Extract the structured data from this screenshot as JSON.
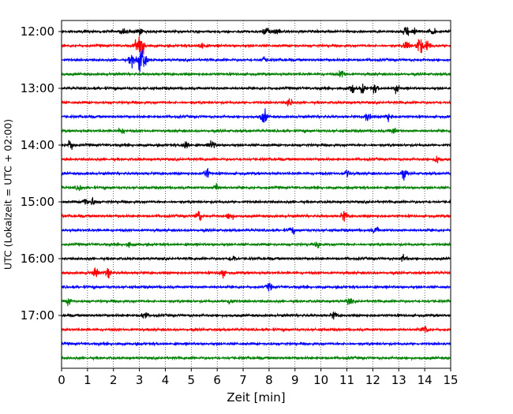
{
  "chart_data": {
    "type": "line",
    "title": "",
    "xlabel": "Zeit  [min]",
    "ylabel": "UTC (Lokalzeit = UTC + 02:00)",
    "xlim": [
      0,
      15
    ],
    "x_ticks": [
      0,
      1,
      2,
      3,
      4,
      5,
      6,
      7,
      8,
      9,
      10,
      11,
      12,
      13,
      14,
      15
    ],
    "x_tick_labels": [
      "0",
      "1",
      "2",
      "3",
      "4",
      "5",
      "6",
      "7",
      "8",
      "9",
      "10",
      "11",
      "12",
      "13",
      "14",
      "15"
    ],
    "y_tick_labels": [
      "12:00",
      "13:00",
      "14:00",
      "15:00",
      "16:00",
      "17:00"
    ],
    "grid": "vertical dotted lines at each minute",
    "color_cycle": [
      "#000000",
      "#ff0000",
      "#0000ff",
      "#008000"
    ],
    "series": [
      {
        "start": "12:00",
        "color": "#000000",
        "events": [
          [
            2.4,
            1.6
          ],
          [
            3.0,
            1.3
          ],
          [
            7.9,
            1.8
          ],
          [
            8.3,
            1.5
          ],
          [
            13.3,
            1.8
          ],
          [
            13.6,
            1.4
          ],
          [
            14.3,
            1.2
          ]
        ]
      },
      {
        "start": "12:15",
        "color": "#ff0000",
        "events": [
          [
            3.1,
            4.0
          ],
          [
            2.9,
            2.0
          ],
          [
            5.4,
            1.2
          ],
          [
            13.8,
            3.5
          ],
          [
            14.1,
            2.2
          ],
          [
            13.3,
            1.6
          ]
        ]
      },
      {
        "start": "12:30",
        "color": "#0000ff",
        "events": [
          [
            3.0,
            4.5
          ],
          [
            3.2,
            3.0
          ],
          [
            2.7,
            1.8
          ],
          [
            7.8,
            1.2
          ]
        ]
      },
      {
        "start": "12:45",
        "color": "#008000",
        "events": [
          [
            10.8,
            1.5
          ]
        ]
      },
      {
        "start": "13:00",
        "color": "#000000",
        "events": [
          [
            11.2,
            1.8
          ],
          [
            11.6,
            1.6
          ],
          [
            12.1,
            1.5
          ],
          [
            12.9,
            1.2
          ]
        ]
      },
      {
        "start": "13:15",
        "color": "#ff0000",
        "events": [
          [
            8.8,
            1.3
          ]
        ]
      },
      {
        "start": "13:30",
        "color": "#0000ff",
        "events": [
          [
            7.8,
            2.5
          ],
          [
            11.8,
            1.5
          ],
          [
            12.6,
            1.6
          ]
        ]
      },
      {
        "start": "13:45",
        "color": "#008000",
        "events": [
          [
            2.3,
            1.2
          ],
          [
            12.8,
            1.2
          ]
        ]
      },
      {
        "start": "14:00",
        "color": "#000000",
        "events": [
          [
            0.35,
            2.0
          ],
          [
            4.8,
            1.8
          ],
          [
            5.8,
            1.8
          ]
        ]
      },
      {
        "start": "14:15",
        "color": "#ff0000",
        "events": [
          [
            14.5,
            1.3
          ]
        ]
      },
      {
        "start": "14:30",
        "color": "#0000ff",
        "events": [
          [
            5.6,
            1.9
          ],
          [
            13.2,
            1.6
          ],
          [
            11.0,
            1.2
          ]
        ]
      },
      {
        "start": "14:45",
        "color": "#008000",
        "events": [
          [
            6.0,
            1.3
          ],
          [
            0.7,
            1.2
          ]
        ]
      },
      {
        "start": "15:00",
        "color": "#000000",
        "events": [
          [
            0.9,
            1.5
          ],
          [
            1.2,
            1.3
          ]
        ]
      },
      {
        "start": "15:15",
        "color": "#ff0000",
        "events": [
          [
            5.3,
            2.2
          ],
          [
            6.5,
            1.8
          ],
          [
            10.9,
            1.8
          ]
        ]
      },
      {
        "start": "15:30",
        "color": "#0000ff",
        "events": [
          [
            8.9,
            1.2
          ],
          [
            12.1,
            1.1
          ]
        ]
      },
      {
        "start": "15:45",
        "color": "#008000",
        "events": [
          [
            2.6,
            1.6
          ],
          [
            9.9,
            1.3
          ]
        ]
      },
      {
        "start": "16:00",
        "color": "#000000",
        "events": [
          [
            6.6,
            1.3
          ],
          [
            13.2,
            1.3
          ]
        ]
      },
      {
        "start": "16:15",
        "color": "#ff0000",
        "events": [
          [
            1.3,
            1.7
          ],
          [
            1.8,
            1.5
          ],
          [
            6.2,
            1.3
          ]
        ]
      },
      {
        "start": "16:30",
        "color": "#0000ff",
        "events": [
          [
            8.0,
            1.3
          ]
        ]
      },
      {
        "start": "16:45",
        "color": "#008000",
        "events": [
          [
            0.3,
            1.3
          ],
          [
            6.5,
            1.2
          ],
          [
            11.1,
            1.2
          ]
        ]
      },
      {
        "start": "17:00",
        "color": "#000000",
        "events": [
          [
            3.2,
            1.3
          ],
          [
            10.5,
            1.2
          ]
        ]
      },
      {
        "start": "17:15",
        "color": "#ff0000",
        "events": [
          [
            14.0,
            2.0
          ]
        ]
      },
      {
        "start": "17:30",
        "color": "#0000ff",
        "events": []
      },
      {
        "start": "17:45",
        "color": "#008000",
        "events": []
      }
    ]
  }
}
